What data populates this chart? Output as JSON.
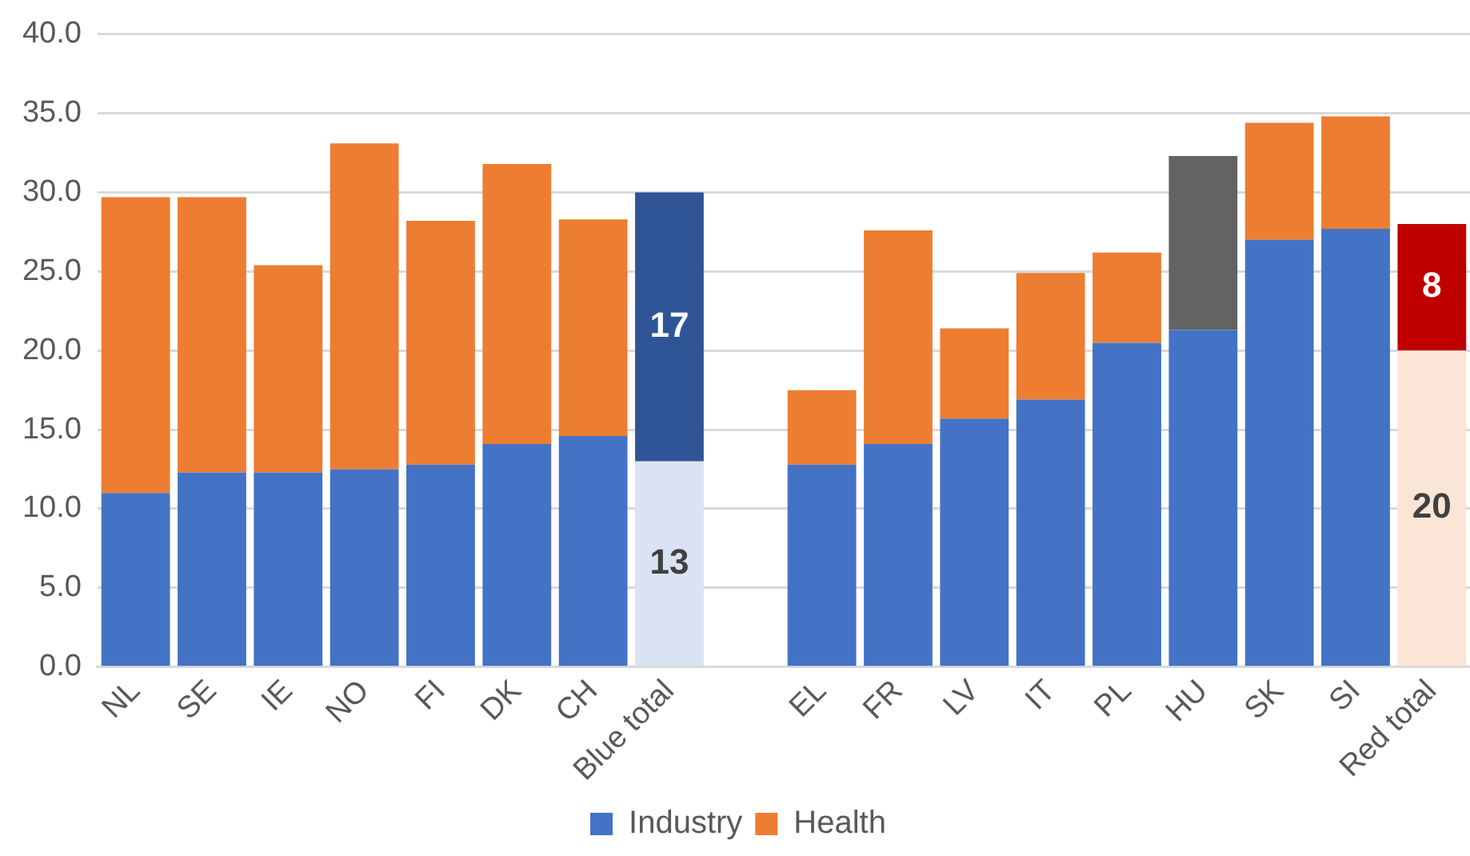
{
  "chart_data": {
    "type": "bar",
    "stacked": true,
    "categories": [
      "NL",
      "SE",
      "IE",
      "NO",
      "FI",
      "DK",
      "CH",
      "Blue total",
      null,
      "EL",
      "FR",
      "LV",
      "IT",
      "PL",
      "HU",
      "SK",
      "SI",
      "Red total"
    ],
    "series": [
      {
        "name": "Industry",
        "color": "#4472c4",
        "colors": [
          "#4472c4",
          "#4472c4",
          "#4472c4",
          "#4472c4",
          "#4472c4",
          "#4472c4",
          "#4472c4",
          "#dae3f3",
          "#4472c4",
          "#4472c4",
          "#4472c4",
          "#4472c4",
          "#4472c4",
          "#4472c4",
          "#4472c4",
          "#4472c4",
          "#4472c4",
          "#fbe5d6"
        ],
        "values": [
          11.0,
          12.3,
          12.3,
          12.5,
          12.8,
          14.1,
          14.6,
          13,
          null,
          12.8,
          14.1,
          15.7,
          16.9,
          20.5,
          21.3,
          27.0,
          27.7,
          20
        ],
        "value_labels": [
          null,
          null,
          null,
          null,
          null,
          null,
          null,
          "13",
          null,
          null,
          null,
          null,
          null,
          null,
          null,
          null,
          null,
          "20"
        ]
      },
      {
        "name": "Health",
        "color": "#ed7d31",
        "colors": [
          "#ed7d31",
          "#ed7d31",
          "#ed7d31",
          "#ed7d31",
          "#ed7d31",
          "#ed7d31",
          "#ed7d31",
          "#2f5597",
          "#ed7d31",
          "#ed7d31",
          "#ed7d31",
          "#ed7d31",
          "#ed7d31",
          "#ed7d31",
          "#636363",
          "#ed7d31",
          "#ed7d31",
          "#c00000"
        ],
        "values": [
          18.7,
          17.4,
          13.1,
          20.6,
          15.4,
          17.7,
          13.7,
          17,
          null,
          4.7,
          13.5,
          5.7,
          8.0,
          5.7,
          11.0,
          7.4,
          7.1,
          8
        ],
        "value_labels": [
          null,
          null,
          null,
          null,
          null,
          null,
          null,
          "17",
          null,
          null,
          null,
          null,
          null,
          null,
          null,
          null,
          null,
          "8"
        ]
      }
    ],
    "ylim": [
      0,
      40
    ],
    "yticks": [
      {
        "value": 0,
        "label": "0.0"
      },
      {
        "value": 5,
        "label": "5.0"
      },
      {
        "value": 10,
        "label": "10.0"
      },
      {
        "value": 15,
        "label": "15.0"
      },
      {
        "value": 20,
        "label": "20.0"
      },
      {
        "value": 25,
        "label": "25.0"
      },
      {
        "value": 30,
        "label": "30.0"
      },
      {
        "value": 35,
        "label": "35.0"
      },
      {
        "value": 40,
        "label": "40.0"
      }
    ],
    "grid": "y",
    "legend": "bottom"
  }
}
